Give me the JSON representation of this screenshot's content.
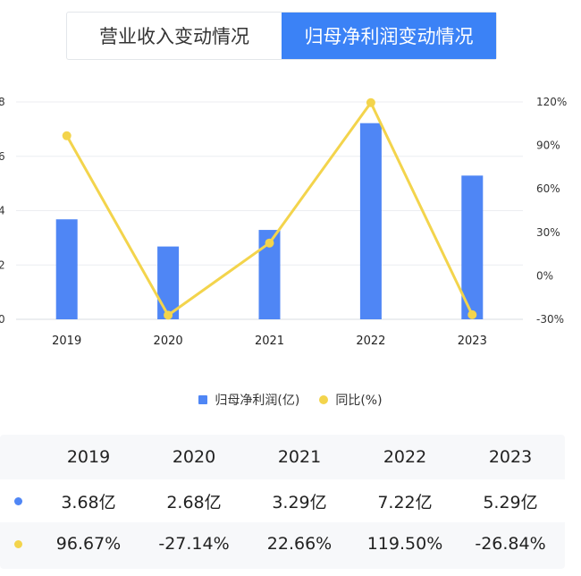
{
  "tabs": [
    {
      "label": "营业收入变动情况",
      "active": false
    },
    {
      "label": "归母净利润变动情况",
      "active": true
    }
  ],
  "colors": {
    "bar": "#4f86f5",
    "line": "#f3d44c",
    "accent": "#3b82f6"
  },
  "legend": {
    "bar_label": "归母净利润(亿)",
    "line_label": "同比(%)"
  },
  "chart_data": {
    "type": "bar",
    "categories": [
      "2019",
      "2020",
      "2021",
      "2022",
      "2023"
    ],
    "series": [
      {
        "name": "归母净利润(亿)",
        "type": "bar",
        "axis": "left",
        "values": [
          3.68,
          2.68,
          3.29,
          7.22,
          5.29
        ]
      },
      {
        "name": "同比(%)",
        "type": "line",
        "axis": "right",
        "values": [
          96.67,
          -27.14,
          22.66,
          119.5,
          -26.84
        ]
      }
    ],
    "left_axis": {
      "ticks": [
        "8",
        "6",
        "4",
        "2",
        "0"
      ],
      "ylim": [
        0,
        8
      ]
    },
    "right_axis": {
      "ticks": [
        "120%",
        "90%",
        "60%",
        "30%",
        "0%",
        "-30%"
      ],
      "ylim": [
        -30,
        120
      ]
    },
    "grid": true,
    "legend_position": "bottom"
  },
  "table": {
    "years": [
      "2019",
      "2020",
      "2021",
      "2022",
      "2023"
    ],
    "profit_row": [
      "3.68亿",
      "2.68亿",
      "3.29亿",
      "7.22亿",
      "5.29亿"
    ],
    "yoy_row": [
      "96.67%",
      "-27.14%",
      "22.66%",
      "119.50%",
      "-26.84%"
    ]
  }
}
